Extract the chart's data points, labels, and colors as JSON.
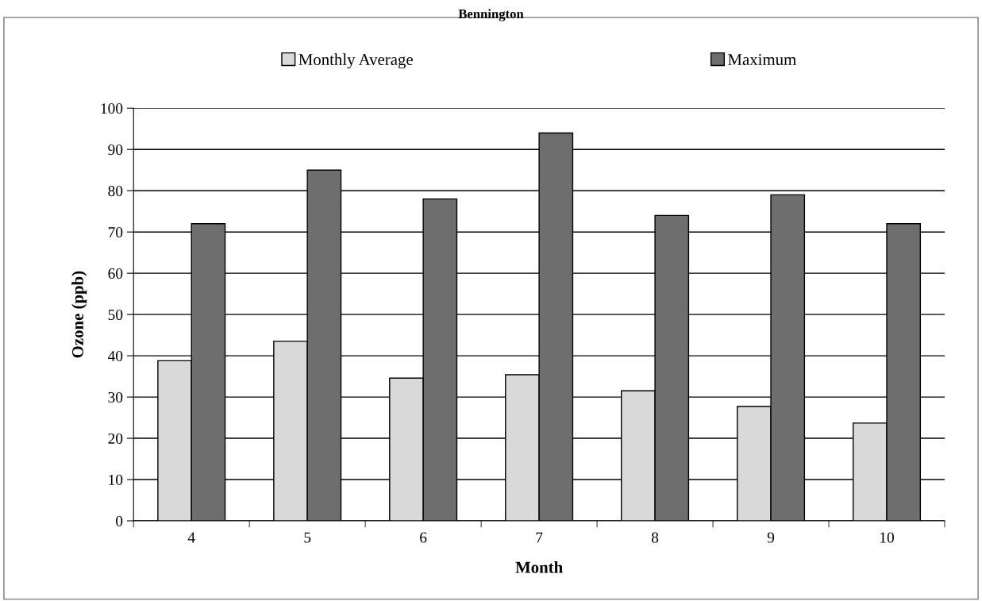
{
  "chart_data": {
    "type": "bar",
    "title": "Bennington",
    "xlabel": "Month",
    "ylabel": "Ozone (ppb)",
    "categories": [
      "4",
      "5",
      "6",
      "7",
      "8",
      "9",
      "10"
    ],
    "series": [
      {
        "name": "Monthly Average",
        "color": "#d9d9d9",
        "values": [
          38.8,
          43.5,
          34.6,
          35.4,
          31.5,
          27.7,
          23.7
        ]
      },
      {
        "name": "Maximum",
        "color": "#6e6e6e",
        "values": [
          72,
          85,
          78,
          94,
          74,
          79,
          72
        ]
      }
    ],
    "ylim": [
      0,
      100
    ],
    "yticks": [
      0,
      10,
      20,
      30,
      40,
      50,
      60,
      70,
      80,
      90,
      100
    ],
    "grid": "y",
    "legend": "top"
  }
}
